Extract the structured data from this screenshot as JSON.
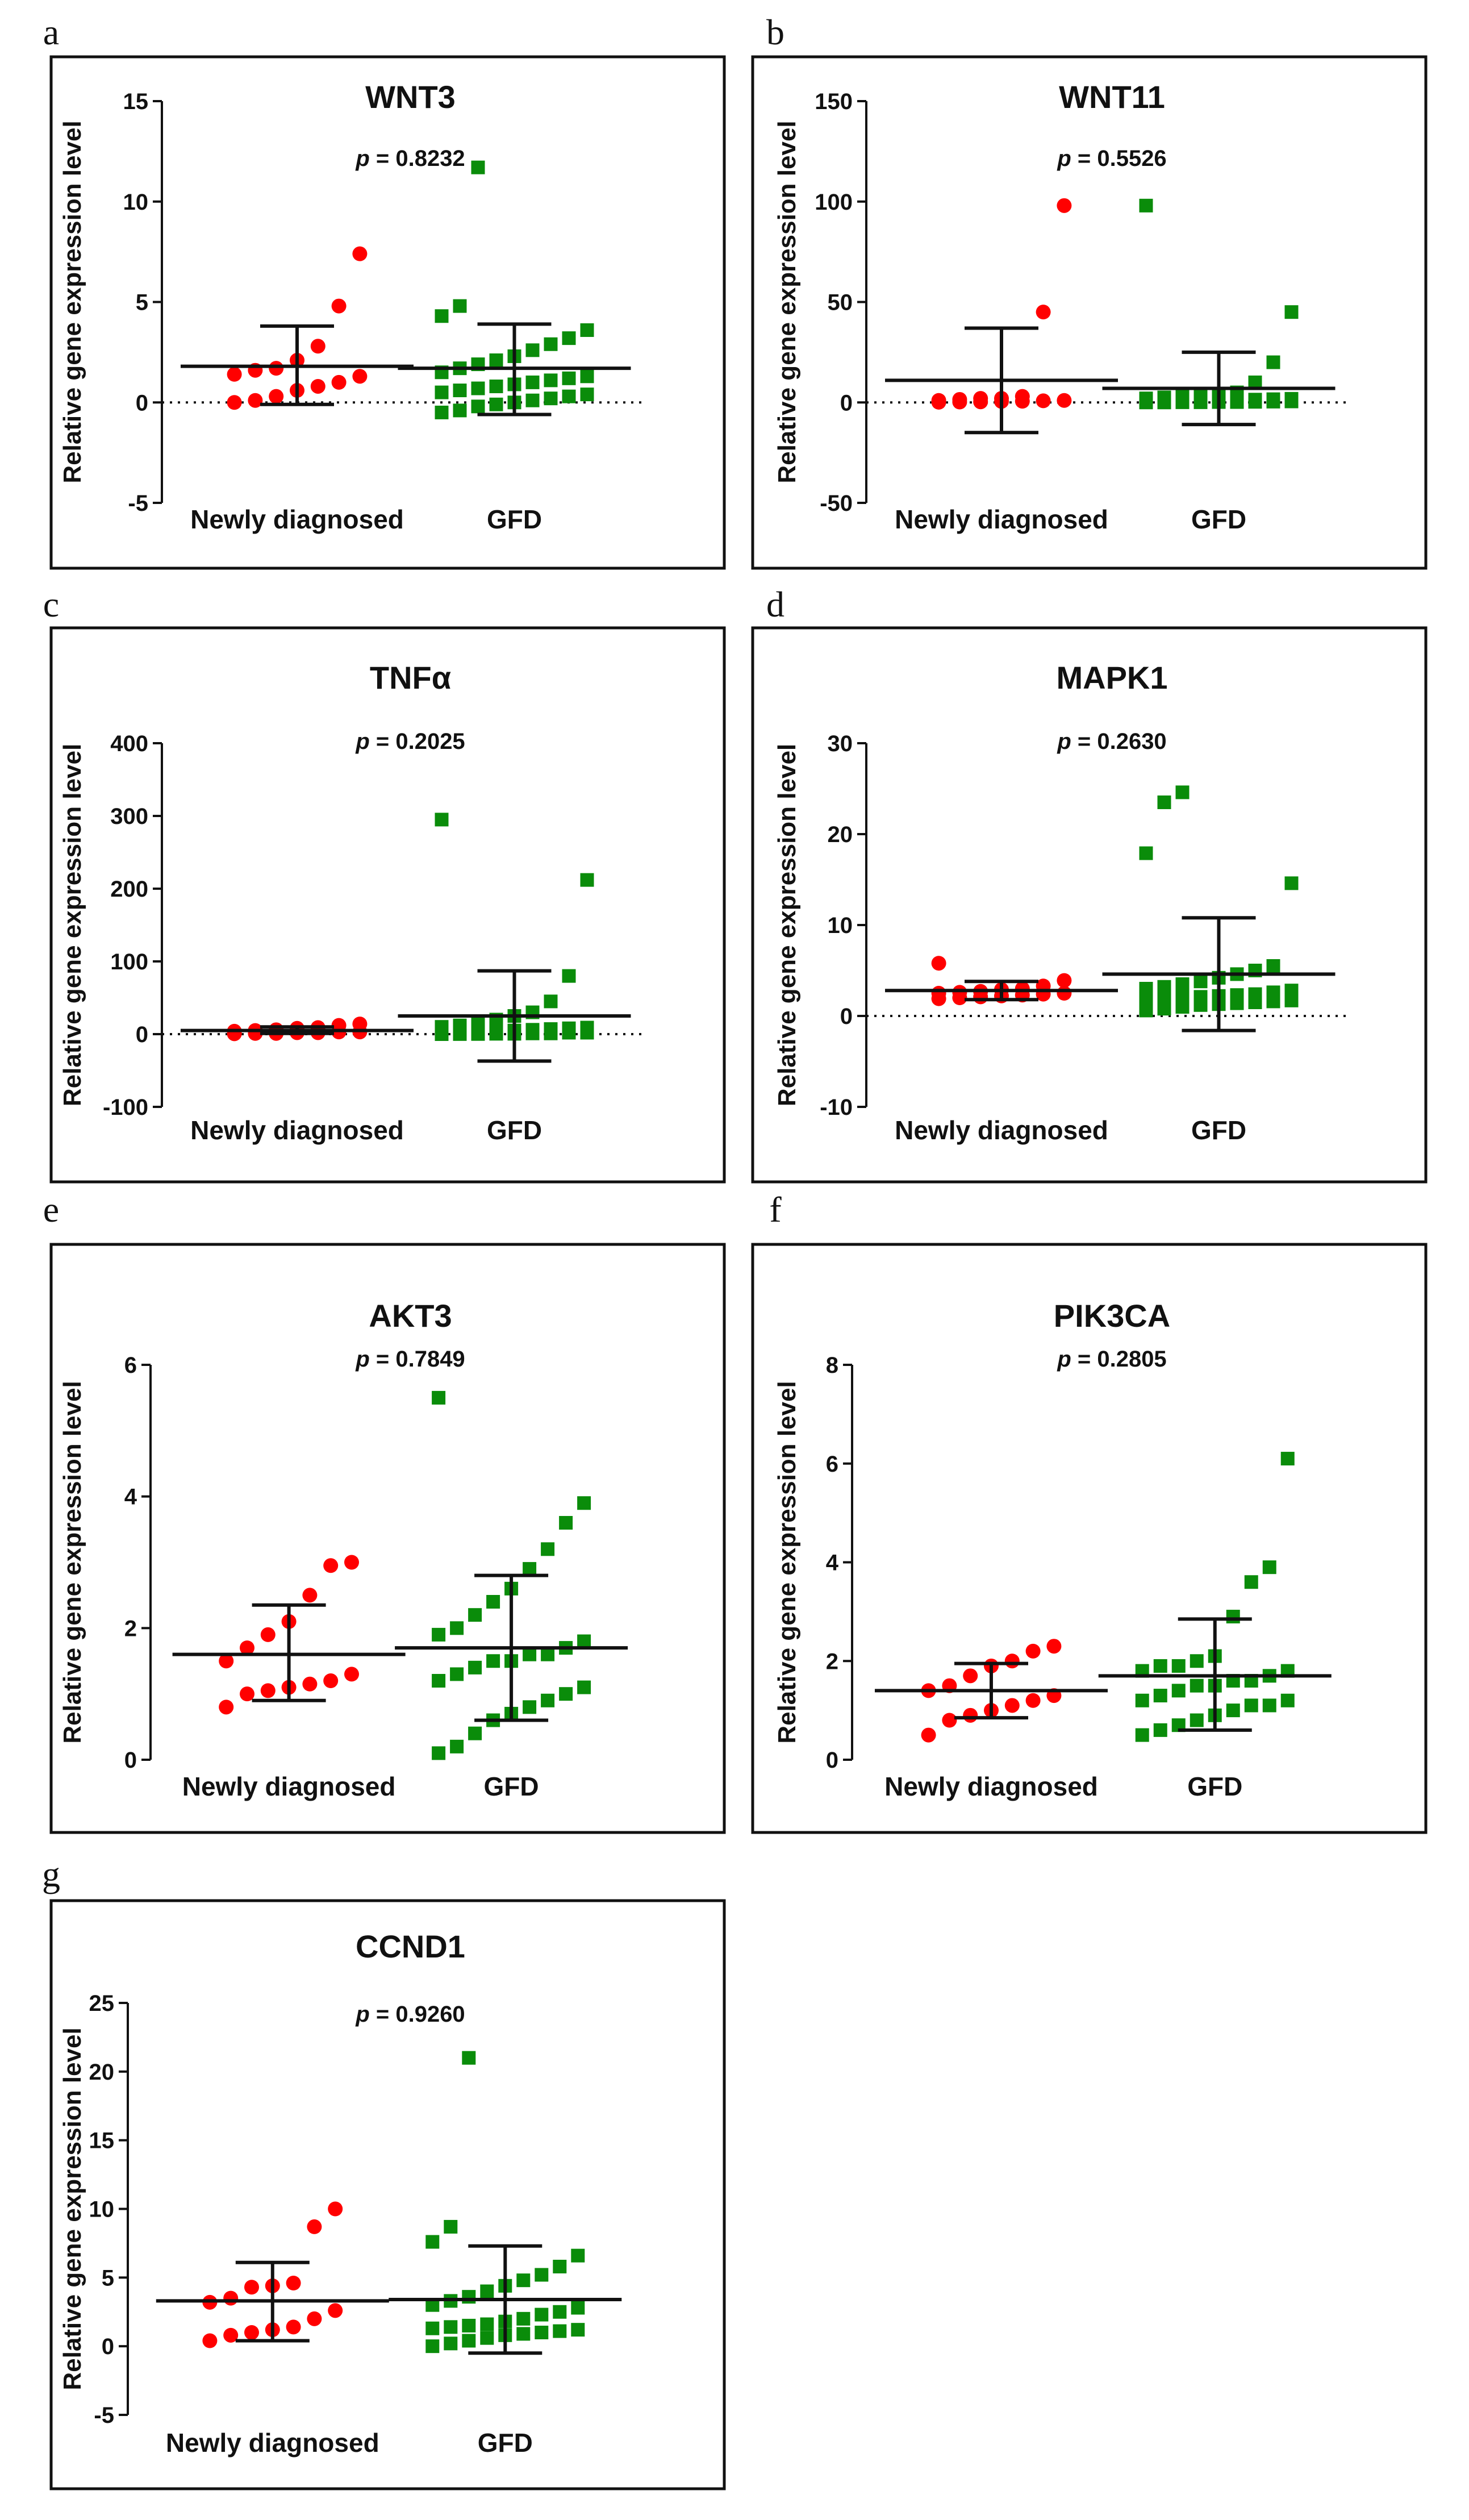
{
  "colors": {
    "group1": "#ff0000",
    "group2": "#0a8c0a",
    "stroke": "#111111"
  },
  "chart_data": [
    {
      "letter": "a",
      "type": "scatter",
      "title": "WNT3",
      "p_prefix": "p",
      "p_rest": " = 0.8232",
      "ylabel": "Relative gene expression level",
      "ylim": [
        -5,
        15
      ],
      "yticks": [
        -5,
        0,
        5,
        10,
        15
      ],
      "zero_line": true,
      "categories": [
        "Newly diagnosed",
        "GFD"
      ],
      "series": [
        {
          "name": "Newly diagnosed",
          "marker": "circle",
          "mean": 1.8,
          "sd_low": -0.1,
          "sd_high": 3.8,
          "values": [
            7.4,
            4.8,
            2.8,
            2.1,
            1.6,
            1.7,
            1.4,
            1.3,
            1.0,
            0.8,
            0.6,
            0.3,
            0.1,
            0.0
          ]
        },
        {
          "name": "GFD",
          "marker": "square",
          "mean": 1.7,
          "sd_low": -0.6,
          "sd_high": 3.9,
          "values": [
            11.7,
            4.8,
            4.3,
            3.6,
            3.2,
            2.9,
            2.6,
            2.3,
            2.1,
            1.9,
            1.7,
            1.5,
            1.3,
            1.2,
            1.1,
            1.0,
            0.9,
            0.8,
            0.7,
            0.6,
            0.5,
            0.4,
            0.3,
            0.2,
            0.1,
            0.0,
            -0.1,
            -0.2,
            -0.4,
            -0.5
          ]
        }
      ]
    },
    {
      "letter": "b",
      "type": "scatter",
      "title": "WNT11",
      "p_prefix": "p",
      "p_rest": " = 0.5526",
      "ylabel": "Relative gene expression level",
      "ylim": [
        -50,
        150
      ],
      "yticks": [
        -50,
        0,
        50,
        100,
        150
      ],
      "zero_line": true,
      "categories": [
        "Newly diagnosed",
        "GFD"
      ],
      "series": [
        {
          "name": "Newly diagnosed",
          "marker": "circle",
          "mean": 11,
          "sd_low": -15,
          "sd_high": 37,
          "values": [
            98,
            45,
            3,
            2,
            2,
            1.5,
            1,
            1,
            0.8,
            0.6,
            0.5,
            0.3,
            0.2,
            0.1
          ]
        },
        {
          "name": "GFD",
          "marker": "square",
          "mean": 7,
          "sd_low": -11,
          "sd_high": 25,
          "values": [
            98,
            45,
            20,
            10,
            5,
            4,
            3.5,
            3,
            2.5,
            2,
            1.8,
            1.6,
            1.4,
            1.2,
            1,
            0.9,
            0.8,
            0.7,
            0.6,
            0.5,
            0.4,
            0.3,
            0.2,
            0.2,
            0.1,
            0.1,
            0,
            0
          ]
        }
      ]
    },
    {
      "letter": "c",
      "type": "scatter",
      "title": "TNFα",
      "p_prefix": "p",
      "p_rest": " = 0.2025",
      "ylabel": "Relative gene expression level",
      "ylim": [
        -100,
        400
      ],
      "yticks": [
        -100,
        0,
        100,
        200,
        300,
        400
      ],
      "zero_line": true,
      "categories": [
        "Newly diagnosed",
        "GFD"
      ],
      "series": [
        {
          "name": "Newly diagnosed",
          "marker": "circle",
          "mean": 5,
          "sd_low": 1,
          "sd_high": 10,
          "values": [
            14,
            12,
            9,
            8,
            6,
            5,
            4,
            3,
            3,
            2,
            2,
            1,
            1,
            0.5
          ]
        },
        {
          "name": "GFD",
          "marker": "square",
          "mean": 25,
          "sd_low": -37,
          "sd_high": 87,
          "values": [
            295,
            212,
            80,
            45,
            30,
            25,
            20,
            15,
            12,
            10,
            9,
            8,
            7,
            6,
            5,
            4,
            4,
            3,
            3,
            2,
            2,
            1,
            1,
            0.5,
            0.5,
            0.2,
            0.1,
            0
          ]
        }
      ]
    },
    {
      "letter": "d",
      "type": "scatter",
      "title": "MAPK1",
      "p_prefix": "p",
      "p_rest": " = 0.2630",
      "ylabel": "Relative gene expression level",
      "ylim": [
        -10,
        30
      ],
      "yticks": [
        -10,
        0,
        10,
        20,
        30
      ],
      "zero_line": true,
      "categories": [
        "Newly diagnosed",
        "GFD"
      ],
      "series": [
        {
          "name": "Newly diagnosed",
          "marker": "circle",
          "mean": 2.8,
          "sd_low": 1.8,
          "sd_high": 3.8,
          "values": [
            5.8,
            3.9,
            3.3,
            3.0,
            2.9,
            2.7,
            2.6,
            2.5,
            2.5,
            2.4,
            2.3,
            2.2,
            2.1,
            2.0,
            1.9
          ]
        },
        {
          "name": "GFD",
          "marker": "square",
          "mean": 4.6,
          "sd_low": -1.6,
          "sd_high": 10.8,
          "values": [
            24.6,
            23.5,
            17.9,
            14.6,
            5.5,
            5.0,
            4.6,
            4.2,
            3.8,
            3.5,
            3.2,
            3.0,
            2.8,
            2.6,
            2.4,
            2.3,
            2.2,
            2.1,
            2.0,
            1.9,
            1.8,
            1.7,
            1.6,
            1.5,
            1.4,
            1.3,
            1.2,
            1.0,
            0.8,
            0.6
          ]
        }
      ]
    },
    {
      "letter": "e",
      "type": "scatter",
      "title": "AKT3",
      "p_prefix": "p",
      "p_rest": " = 0.7849",
      "ylabel": "Relative gene expression level",
      "ylim": [
        0,
        6
      ],
      "yticks": [
        0,
        2,
        4,
        6
      ],
      "zero_line": false,
      "categories": [
        "Newly diagnosed",
        "GFD"
      ],
      "series": [
        {
          "name": "Newly diagnosed",
          "marker": "circle",
          "mean": 1.6,
          "sd_low": 0.9,
          "sd_high": 2.35,
          "values": [
            3.0,
            2.95,
            2.5,
            2.1,
            1.9,
            1.7,
            1.5,
            1.3,
            1.2,
            1.15,
            1.1,
            1.05,
            1.0,
            0.8
          ]
        },
        {
          "name": "GFD",
          "marker": "square",
          "mean": 1.7,
          "sd_low": 0.6,
          "sd_high": 2.8,
          "values": [
            5.5,
            3.9,
            3.6,
            3.2,
            2.9,
            2.6,
            2.4,
            2.2,
            2.0,
            1.9,
            1.8,
            1.7,
            1.6,
            1.6,
            1.5,
            1.5,
            1.4,
            1.3,
            1.2,
            1.1,
            1.0,
            0.9,
            0.8,
            0.7,
            0.6,
            0.4,
            0.2,
            0.1
          ]
        }
      ]
    },
    {
      "letter": "f",
      "type": "scatter",
      "title": "PIK3CA",
      "p_prefix": "p",
      "p_rest": " = 0.2805",
      "ylabel": "Relative gene expression level",
      "ylim": [
        0,
        8
      ],
      "yticks": [
        0,
        2,
        4,
        6,
        8
      ],
      "zero_line": false,
      "categories": [
        "Newly diagnosed",
        "GFD"
      ],
      "series": [
        {
          "name": "Newly diagnosed",
          "marker": "circle",
          "mean": 1.4,
          "sd_low": 0.85,
          "sd_high": 1.95,
          "values": [
            2.3,
            2.2,
            2.0,
            1.9,
            1.7,
            1.5,
            1.4,
            1.3,
            1.2,
            1.1,
            1.0,
            0.9,
            0.8,
            0.5
          ]
        },
        {
          "name": "GFD",
          "marker": "square",
          "mean": 1.7,
          "sd_low": 0.6,
          "sd_high": 2.85,
          "values": [
            6.1,
            3.9,
            3.6,
            2.9,
            2.1,
            2.0,
            1.9,
            1.9,
            1.8,
            1.8,
            1.7,
            1.6,
            1.6,
            1.5,
            1.5,
            1.4,
            1.3,
            1.2,
            1.2,
            1.1,
            1.1,
            1.0,
            0.9,
            0.8,
            0.7,
            0.6,
            0.5
          ]
        }
      ]
    },
    {
      "letter": "g",
      "type": "scatter",
      "title": "CCND1",
      "p_prefix": "p",
      "p_rest": " = 0.9260",
      "ylabel": "Relative gene expression level",
      "ylim": [
        -5,
        25
      ],
      "yticks": [
        -5,
        0,
        5,
        10,
        15,
        20,
        25
      ],
      "zero_line": false,
      "categories": [
        "Newly diagnosed",
        "GFD"
      ],
      "series": [
        {
          "name": "Newly diagnosed",
          "marker": "circle",
          "mean": 3.3,
          "sd_low": 0.4,
          "sd_high": 6.1,
          "values": [
            10.0,
            8.7,
            4.6,
            4.4,
            4.3,
            3.5,
            3.2,
            2.6,
            2.0,
            1.4,
            1.2,
            1.0,
            0.8,
            0.4
          ]
        },
        {
          "name": "GFD",
          "marker": "square",
          "mean": 3.4,
          "sd_low": -0.5,
          "sd_high": 7.3,
          "values": [
            21.0,
            8.7,
            7.6,
            6.6,
            5.8,
            5.2,
            4.8,
            4.4,
            4.0,
            3.6,
            3.3,
            3.0,
            2.8,
            2.5,
            2.3,
            2.0,
            1.8,
            1.6,
            1.5,
            1.4,
            1.3,
            1.2,
            1.1,
            1.0,
            0.9,
            0.8,
            0.6,
            0.4,
            0.2,
            0.0
          ]
        }
      ]
    }
  ]
}
